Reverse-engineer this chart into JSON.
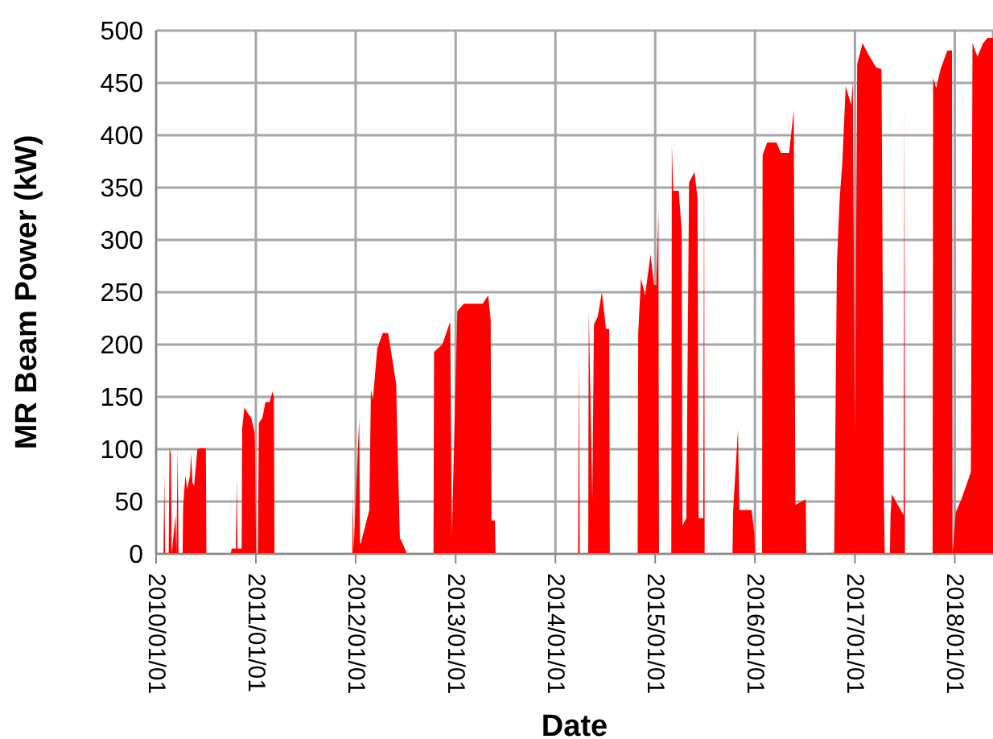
{
  "chart_data": {
    "type": "area",
    "xlabel": "Date",
    "ylabel": "MR Beam Power (kW)",
    "xlim": [
      "2010-01-01",
      "2018-05-21"
    ],
    "xticks": [
      {
        "value": "2010-01-01",
        "label": "2010/01/01"
      },
      {
        "value": "2011-01-01",
        "label": "2011/01/01"
      },
      {
        "value": "2012-01-01",
        "label": "2012/01/01"
      },
      {
        "value": "2013-01-01",
        "label": "2013/01/01"
      },
      {
        "value": "2014-01-01",
        "label": "2014/01/01"
      },
      {
        "value": "2015-01-01",
        "label": "2015/01/01"
      },
      {
        "value": "2016-01-01",
        "label": "2016/01/01"
      },
      {
        "value": "2017-01-01",
        "label": "2017/01/01"
      },
      {
        "value": "2018-01-01",
        "label": "2018/01/01"
      }
    ],
    "ylim": [
      0,
      500
    ],
    "yticks": [
      0,
      50,
      100,
      150,
      200,
      250,
      300,
      350,
      400,
      450,
      500
    ],
    "grid": true,
    "series": [
      {
        "color": "#ff0000",
        "x": [
          "2010-01-01",
          "2010-01-28",
          "2010-01-31",
          "2010-02-03",
          "2010-02-16",
          "2010-02-19",
          "2010-02-24",
          "2010-02-27",
          "2010-03-13",
          "2010-03-16",
          "2010-03-21",
          "2010-03-24",
          "2010-04-08",
          "2010-04-10",
          "2010-04-18",
          "2010-04-25",
          "2010-05-05",
          "2010-05-09",
          "2010-05-14",
          "2010-05-20",
          "2010-06-01",
          "2010-06-10",
          "2010-07-02",
          "2010-07-04",
          "2010-09-30",
          "2010-10-05",
          "2010-10-20",
          "2010-10-23",
          "2010-10-26",
          "2010-11-10",
          "2010-11-12",
          "2010-11-20",
          "2010-12-01",
          "2010-12-15",
          "2010-12-28",
          "2011-01-02",
          "2011-01-08",
          "2011-01-12",
          "2011-01-25",
          "2011-02-05",
          "2011-02-20",
          "2011-03-03",
          "2011-03-08",
          "2011-03-10",
          "2011-12-20",
          "2011-12-22",
          "2011-12-25",
          "2012-01-14",
          "2012-01-17",
          "2012-01-20",
          "2012-02-20",
          "2012-02-26",
          "2012-03-04",
          "2012-03-20",
          "2012-04-09",
          "2012-04-29",
          "2012-05-28",
          "2012-06-11",
          "2012-06-14",
          "2012-07-07",
          "2012-07-09",
          "2012-10-12",
          "2012-10-14",
          "2012-11-13",
          "2012-12-12",
          "2012-12-18",
          "2013-01-07",
          "2013-01-31",
          "2013-04-10",
          "2013-04-30",
          "2013-05-09",
          "2013-05-12",
          "2013-05-25",
          "2013-05-27",
          "2014-03-25",
          "2014-03-28",
          "2014-03-31",
          "2014-05-01",
          "2014-05-03",
          "2014-05-16",
          "2014-05-22",
          "2014-06-05",
          "2014-06-20",
          "2014-07-05",
          "2014-07-17",
          "2014-07-19",
          "2014-10-29",
          "2014-10-31",
          "2014-11-10",
          "2014-11-25",
          "2014-12-15",
          "2014-12-28",
          "2015-01-05",
          "2015-01-13",
          "2015-01-15",
          "2015-03-01",
          "2015-03-03",
          "2015-03-08",
          "2015-03-28",
          "2015-04-08",
          "2015-04-11",
          "2015-04-25",
          "2015-05-05",
          "2015-05-25",
          "2015-06-05",
          "2015-06-09",
          "2015-06-26",
          "2015-06-29",
          "2015-07-01",
          "2015-10-11",
          "2015-10-13",
          "2015-10-31",
          "2015-11-05",
          "2015-12-20",
          "2015-12-30",
          "2016-01-01",
          "2016-01-27",
          "2016-01-29",
          "2016-02-15",
          "2016-03-20",
          "2016-04-05",
          "2016-05-05",
          "2016-05-22",
          "2016-05-28",
          "2016-07-05",
          "2016-07-07",
          "2016-10-17",
          "2016-10-27",
          "2016-11-06",
          "2016-11-16",
          "2016-11-28",
          "2016-12-18",
          "2016-12-24",
          "2017-01-01",
          "2017-01-09",
          "2017-01-29",
          "2017-02-17",
          "2017-03-19",
          "2017-04-08",
          "2017-04-17",
          "2017-04-20",
          "2017-05-09",
          "2017-05-11",
          "2017-05-16",
          "2017-06-28",
          "2017-07-01",
          "2017-07-03",
          "2017-10-12",
          "2017-10-14",
          "2017-10-25",
          "2017-11-10",
          "2017-12-05",
          "2017-12-22",
          "2017-12-24",
          "2018-01-05",
          "2018-01-25",
          "2018-03-01",
          "2018-03-07",
          "2018-03-25",
          "2018-04-15",
          "2018-05-01",
          "2018-05-21"
        ],
        "values": [
          0,
          0,
          75,
          0,
          0,
          101,
          95,
          0,
          37,
          0,
          101,
          0,
          0,
          45,
          75,
          62,
          75,
          96,
          68,
          65,
          100,
          101,
          101,
          0,
          0,
          5,
          5,
          73,
          5,
          5,
          120,
          140,
          135,
          130,
          115,
          0,
          0,
          125,
          130,
          145,
          145,
          155,
          150,
          0,
          0,
          57,
          5,
          129,
          10,
          10,
          42,
          157,
          147,
          196,
          211,
          211,
          163,
          14,
          14,
          0,
          0,
          0,
          193,
          200,
          222,
          16,
          232,
          239,
          239,
          247,
          224,
          32,
          32,
          0,
          0,
          191,
          0,
          0,
          232,
          52,
          219,
          227,
          250,
          215,
          215,
          0,
          0,
          211,
          263,
          247,
          286,
          257,
          257,
          329,
          0,
          0,
          391,
          347,
          347,
          309,
          27,
          34,
          355,
          365,
          339,
          34,
          34,
          381,
          0,
          0,
          40,
          119,
          42,
          42,
          19,
          0,
          0,
          381,
          393,
          393,
          383,
          383,
          424,
          47,
          52,
          0,
          1,
          278,
          339,
          375,
          447,
          429,
          452,
          111,
          468,
          488,
          478,
          465,
          463,
          47,
          0,
          0,
          37,
          57,
          37,
          432,
          0,
          0,
          455,
          445,
          463,
          481,
          481,
          0,
          40,
          52,
          78,
          488,
          475,
          488,
          493,
          493
        ]
      }
    ]
  }
}
